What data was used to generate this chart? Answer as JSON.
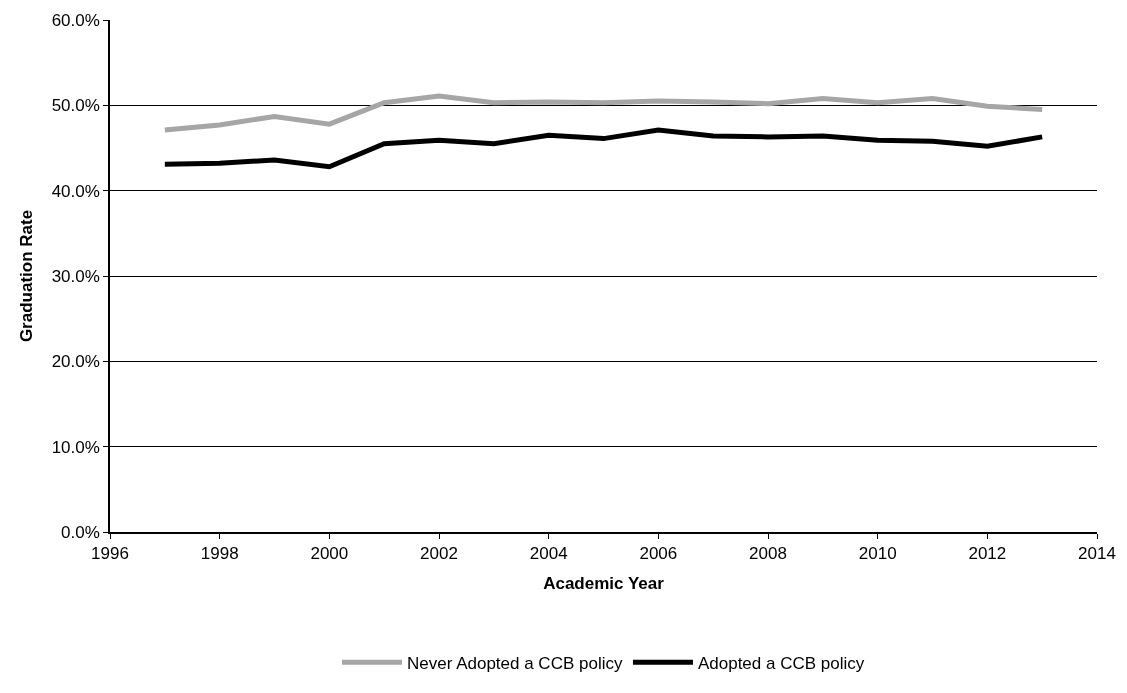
{
  "chart_data": {
    "type": "line",
    "xlabel": "Academic Year",
    "ylabel": "Graduation Rate",
    "x": [
      1997,
      1998,
      1999,
      2000,
      2001,
      2002,
      2003,
      2004,
      2005,
      2006,
      2007,
      2008,
      2009,
      2010,
      2011,
      2012,
      2013
    ],
    "series": [
      {
        "name": "Never Adopted a CCB policy",
        "color": "#a6a6a6",
        "values": [
          47.1,
          47.7,
          48.7,
          47.8,
          50.3,
          51.1,
          50.3,
          50.4,
          50.3,
          50.5,
          50.4,
          50.2,
          50.8,
          50.3,
          50.8,
          49.9,
          49.5
        ]
      },
      {
        "name": "Adopted a CCB policy",
        "color": "#000000",
        "values": [
          43.1,
          43.2,
          43.6,
          42.8,
          45.5,
          45.9,
          45.5,
          46.5,
          46.1,
          47.1,
          46.4,
          46.3,
          46.4,
          45.9,
          45.8,
          45.2,
          46.3
        ]
      }
    ],
    "xlim": [
      1996,
      2014
    ],
    "xticks": [
      1996,
      1998,
      2000,
      2002,
      2004,
      2006,
      2008,
      2010,
      2012,
      2014
    ],
    "ylim": [
      0,
      60
    ],
    "yticks": [
      {
        "value": 0,
        "label": "0.0%"
      },
      {
        "value": 10,
        "label": "10.0%"
      },
      {
        "value": 20,
        "label": "20.0%"
      },
      {
        "value": 30,
        "label": "30.0%"
      },
      {
        "value": 40,
        "label": "40.0%"
      },
      {
        "value": 50,
        "label": "50.0%"
      },
      {
        "value": 60,
        "label": "60.0%"
      }
    ],
    "grid": "y",
    "legend": "bottom",
    "marker": "none",
    "line_style": "solid"
  }
}
